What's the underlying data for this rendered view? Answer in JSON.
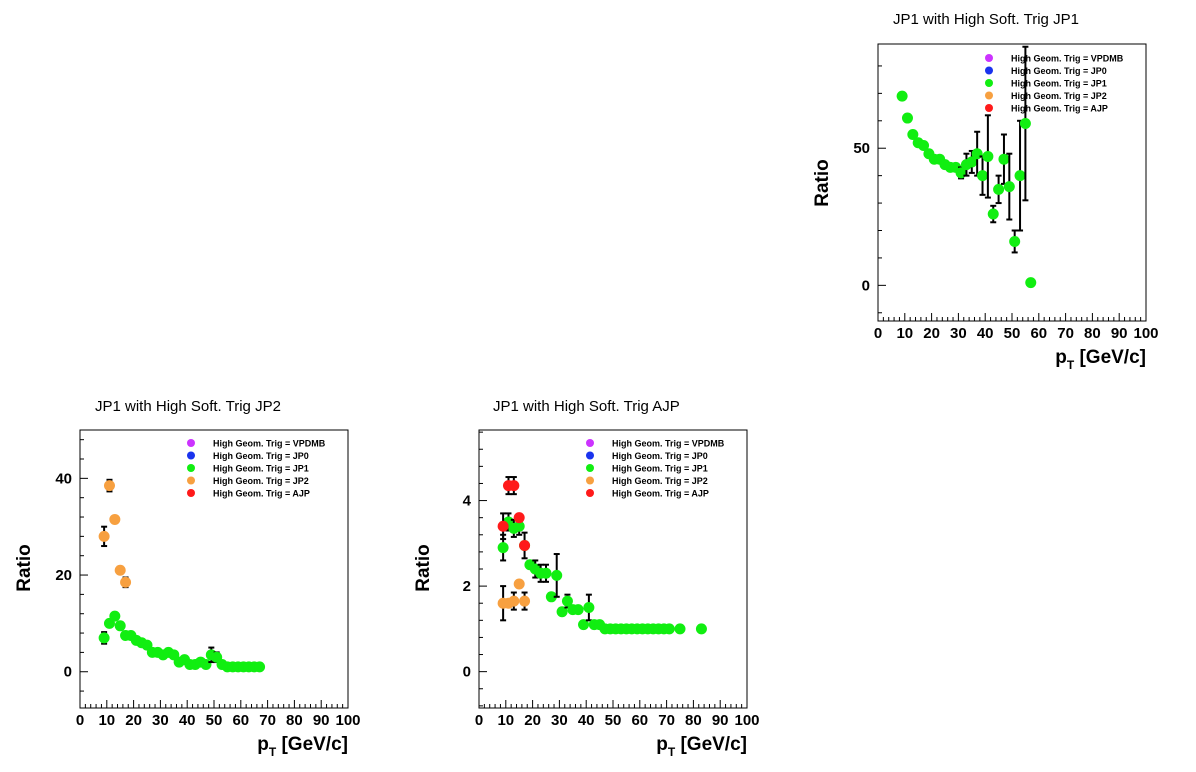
{
  "chart_data": [
    {
      "type": "scatter",
      "title": "JP1 with High Soft. Trig JP1",
      "xlabel_main": "p",
      "xlabel_sub": "T",
      "xlabel_unit": " [GeV/c]",
      "ylabel": "Ratio",
      "xlim": [
        0,
        100
      ],
      "ylim": [
        -13,
        88
      ],
      "xticks": [
        0,
        10,
        20,
        30,
        40,
        50,
        60,
        70,
        80,
        90,
        100
      ],
      "yticks": [
        0,
        50
      ],
      "legend": [
        "High Geom. Trig = VPDMB",
        "High Geom. Trig = JP0",
        "High Geom. Trig = JP1",
        "High Geom. Trig = JP2",
        "High Geom. Trig = AJP"
      ],
      "legend_colors": [
        "#cc33ff",
        "#1a33ee",
        "#11ee11",
        "#f7a040",
        "#ff1a1a"
      ],
      "series": [
        {
          "color": "#11ee11",
          "points": [
            [
              9,
              69,
              0
            ],
            [
              11,
              61,
              0
            ],
            [
              13,
              55,
              0
            ],
            [
              15,
              52,
              0
            ],
            [
              17,
              51,
              0
            ],
            [
              19,
              48,
              0
            ],
            [
              21,
              46,
              0
            ],
            [
              23,
              46,
              0
            ],
            [
              25,
              44,
              0
            ],
            [
              27,
              43,
              0
            ],
            [
              29,
              43,
              0
            ],
            [
              31,
              41,
              2
            ],
            [
              33,
              44,
              4
            ],
            [
              35,
              45,
              4
            ],
            [
              37,
              48,
              8
            ],
            [
              39,
              40,
              7
            ],
            [
              41,
              47,
              15
            ],
            [
              43,
              26,
              3
            ],
            [
              45,
              35,
              5
            ],
            [
              47,
              46,
              9
            ],
            [
              49,
              36,
              12
            ],
            [
              51,
              16,
              4
            ],
            [
              53,
              40,
              20
            ],
            [
              55,
              59,
              28
            ],
            [
              57,
              1,
              0
            ]
          ]
        }
      ]
    },
    {
      "type": "scatter",
      "title": "JP1 with High Soft. Trig JP2",
      "xlabel_main": "p",
      "xlabel_sub": "T",
      "xlabel_unit": " [GeV/c]",
      "ylabel": "Ratio",
      "xlim": [
        0,
        100
      ],
      "ylim": [
        -7.5,
        50
      ],
      "xticks": [
        0,
        10,
        20,
        30,
        40,
        50,
        60,
        70,
        80,
        90,
        100
      ],
      "yticks": [
        0,
        20,
        40
      ],
      "legend": [
        "High Geom. Trig = VPDMB",
        "High Geom. Trig = JP0",
        "High Geom. Trig = JP1",
        "High Geom. Trig = JP2",
        "High Geom. Trig = AJP"
      ],
      "legend_colors": [
        "#cc33ff",
        "#1a33ee",
        "#11ee11",
        "#f7a040",
        "#ff1a1a"
      ],
      "series": [
        {
          "color": "#f7a040",
          "points": [
            [
              9,
              28,
              2
            ],
            [
              11,
              38.5,
              1.2
            ],
            [
              13,
              31.5,
              0
            ],
            [
              15,
              21,
              0
            ],
            [
              17,
              18.5,
              1
            ]
          ]
        },
        {
          "color": "#11ee11",
          "points": [
            [
              9,
              7,
              1.2
            ],
            [
              11,
              10,
              0
            ],
            [
              13,
              11.5,
              0
            ],
            [
              15,
              9.5,
              0
            ],
            [
              17,
              7.5,
              0
            ],
            [
              19,
              7.5,
              0
            ],
            [
              21,
              6.5,
              0
            ],
            [
              23,
              6,
              0
            ],
            [
              25,
              5.5,
              0
            ],
            [
              27,
              4,
              0
            ],
            [
              29,
              4,
              0
            ],
            [
              31,
              3.5,
              0
            ],
            [
              33,
              4,
              0
            ],
            [
              35,
              3.5,
              0
            ],
            [
              37,
              2,
              0
            ],
            [
              39,
              2.5,
              0
            ],
            [
              41,
              1.5,
              0
            ],
            [
              43,
              1.5,
              0
            ],
            [
              45,
              2,
              0
            ],
            [
              47,
              1.5,
              0
            ],
            [
              49,
              3.5,
              1.5
            ],
            [
              51,
              3,
              1
            ],
            [
              53,
              1.5,
              0
            ],
            [
              55,
              1,
              0
            ],
            [
              57,
              1,
              0
            ],
            [
              59,
              1,
              0
            ],
            [
              61,
              1,
              0
            ],
            [
              63,
              1,
              0
            ],
            [
              65,
              1,
              0
            ],
            [
              67,
              1,
              0
            ]
          ]
        }
      ]
    },
    {
      "type": "scatter",
      "title": "JP1 with High Soft. Trig AJP",
      "xlabel_main": "p",
      "xlabel_sub": "T",
      "xlabel_unit": " [GeV/c]",
      "ylabel": "Ratio",
      "xlim": [
        0,
        100
      ],
      "ylim": [
        -0.85,
        5.65
      ],
      "xticks": [
        0,
        10,
        20,
        30,
        40,
        50,
        60,
        70,
        80,
        90,
        100
      ],
      "yticks": [
        0,
        2,
        4
      ],
      "legend": [
        "High Geom. Trig = VPDMB",
        "High Geom. Trig = JP0",
        "High Geom. Trig = JP1",
        "High Geom. Trig = JP2",
        "High Geom. Trig = AJP"
      ],
      "legend_colors": [
        "#cc33ff",
        "#1a33ee",
        "#11ee11",
        "#f7a040",
        "#ff1a1a"
      ],
      "series": [
        {
          "color": "#11ee11",
          "points": [
            [
              9,
              2.9,
              0.3
            ],
            [
              11,
              3.5,
              0.2
            ],
            [
              13,
              3.35,
              0.2
            ],
            [
              15,
              3.4,
              0.2
            ],
            [
              17,
              2.95,
              0.3
            ],
            [
              19,
              2.5,
              0
            ],
            [
              21,
              2.4,
              0.2
            ],
            [
              23,
              2.3,
              0.2
            ],
            [
              25,
              2.3,
              0.2
            ],
            [
              27,
              1.75,
              0
            ],
            [
              29,
              2.25,
              0.5
            ],
            [
              31,
              1.4,
              0
            ],
            [
              33,
              1.65,
              0.15
            ],
            [
              35,
              1.45,
              0
            ],
            [
              37,
              1.45,
              0
            ],
            [
              39,
              1.1,
              0
            ],
            [
              41,
              1.5,
              0.3
            ],
            [
              43,
              1.1,
              0
            ],
            [
              45,
              1.1,
              0
            ],
            [
              47,
              1,
              0
            ],
            [
              49,
              1,
              0
            ],
            [
              51,
              1,
              0
            ],
            [
              53,
              1,
              0
            ],
            [
              55,
              1,
              0
            ],
            [
              57,
              1,
              0
            ],
            [
              59,
              1,
              0
            ],
            [
              61,
              1,
              0
            ],
            [
              63,
              1,
              0
            ],
            [
              65,
              1,
              0
            ],
            [
              67,
              1,
              0
            ],
            [
              69,
              1,
              0
            ],
            [
              71,
              1,
              0
            ],
            [
              75,
              1,
              0
            ],
            [
              83,
              1,
              0
            ]
          ]
        },
        {
          "color": "#f7a040",
          "points": [
            [
              9,
              1.6,
              0.4
            ],
            [
              11,
              1.6,
              0
            ],
            [
              13,
              1.65,
              0.2
            ],
            [
              15,
              2.05,
              0
            ],
            [
              17,
              1.65,
              0.2
            ]
          ]
        },
        {
          "color": "#ff1a1a",
          "points": [
            [
              9,
              3.4,
              0.3
            ],
            [
              11,
              4.35,
              0.2
            ],
            [
              13,
              4.35,
              0.2
            ],
            [
              15,
              3.6,
              0
            ],
            [
              17,
              2.95,
              0
            ]
          ]
        }
      ]
    }
  ]
}
